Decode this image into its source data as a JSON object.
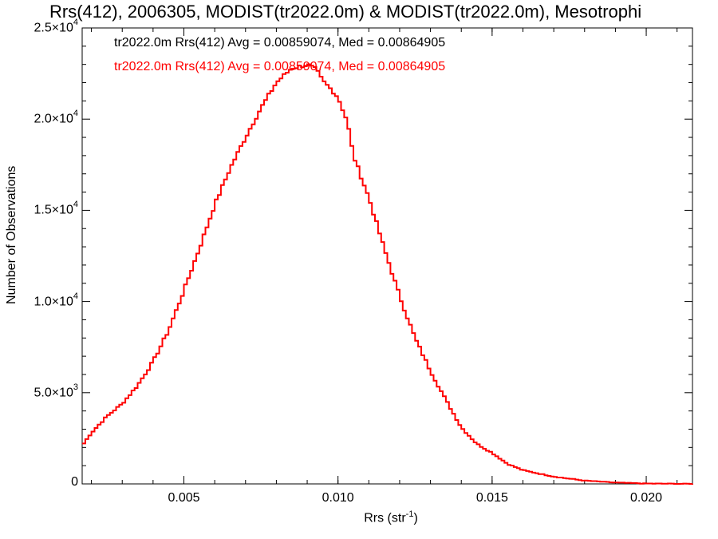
{
  "chart_data": {
    "type": "line",
    "style": "step-histogram",
    "title": "Rrs(412), 2006305, MODIST(tr2022.0m) & MODIST(tr2022.0m), Mesotrophi",
    "xlabel_main": "Rrs (str",
    "xlabel_exp": "-1",
    "xlabel_close": ")",
    "ylabel": "Number of Observations",
    "xlim": [
      0.0017,
      0.0215
    ],
    "ylim": [
      0,
      25000
    ],
    "xticks": [
      {
        "value": 0.005,
        "label": "0.005"
      },
      {
        "value": 0.01,
        "label": "0.010"
      },
      {
        "value": 0.015,
        "label": "0.015"
      },
      {
        "value": 0.02,
        "label": "0.020"
      }
    ],
    "yticks": [
      {
        "value": 0,
        "mant": "0",
        "exp": ""
      },
      {
        "value": 5000,
        "mant": "5.0×10",
        "exp": "3"
      },
      {
        "value": 10000,
        "mant": "1.0×10",
        "exp": "4"
      },
      {
        "value": 15000,
        "mant": "1.5×10",
        "exp": "4"
      },
      {
        "value": 20000,
        "mant": "2.0×10",
        "exp": "4"
      },
      {
        "value": 25000,
        "mant": "2.5×10",
        "exp": "4"
      }
    ],
    "stats": [
      {
        "text": "tr2022.0m Rrs(412) Avg = 0.00859074, Med = 0.00864905",
        "color": "#000000"
      },
      {
        "text": "tr2022.0m Rrs(412) Avg = 0.00859074, Med = 0.00864905",
        "color": "#ff0000"
      }
    ],
    "series": [
      {
        "color": "#ff0000",
        "x": [
          0.0017,
          0.002,
          0.0025,
          0.003,
          0.0035,
          0.004,
          0.0045,
          0.005,
          0.0055,
          0.006,
          0.0065,
          0.007,
          0.0075,
          0.008,
          0.0085,
          0.0088,
          0.009,
          0.0093,
          0.0095,
          0.0098,
          0.01,
          0.0103,
          0.0105,
          0.011,
          0.0115,
          0.012,
          0.0125,
          0.013,
          0.0135,
          0.014,
          0.0145,
          0.015,
          0.0155,
          0.016,
          0.017,
          0.018,
          0.019,
          0.02,
          0.0215
        ],
        "y": [
          2100,
          2800,
          3700,
          4400,
          5400,
          6700,
          8400,
          10600,
          12900,
          15300,
          17300,
          19000,
          20600,
          22000,
          22800,
          22900,
          23000,
          22700,
          22100,
          21600,
          21200,
          19900,
          18000,
          15700,
          12900,
          10300,
          8000,
          6200,
          4600,
          3100,
          2200,
          1700,
          1100,
          750,
          400,
          180,
          70,
          20,
          0
        ]
      }
    ],
    "grid": false,
    "colors": {
      "series": "#ff0000",
      "axes": "#000000",
      "background": "#ffffff"
    }
  }
}
